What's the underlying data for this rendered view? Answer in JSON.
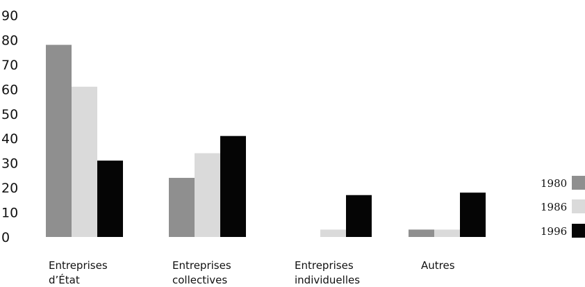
{
  "chart_data": {
    "type": "bar",
    "categories": [
      [
        "Entreprises",
        "d’État"
      ],
      [
        "Entreprises",
        "collectives"
      ],
      [
        "Entreprises",
        "individuelles"
      ],
      [
        "Autres"
      ]
    ],
    "series": [
      {
        "name": "1980",
        "values": [
          78,
          24,
          0,
          3
        ],
        "color": "#8f8f8f"
      },
      {
        "name": "1986",
        "values": [
          61,
          34,
          3,
          3
        ],
        "color": "#dadada"
      },
      {
        "name": "1996",
        "values": [
          31,
          41,
          17,
          18
        ],
        "color": "#050505"
      }
    ],
    "ylim": [
      0,
      90
    ],
    "yticks": [
      0,
      10,
      20,
      30,
      40,
      50,
      60,
      70,
      80,
      90
    ],
    "title": "",
    "xlabel": "",
    "ylabel": "",
    "grid": false,
    "legend_position": "right"
  }
}
